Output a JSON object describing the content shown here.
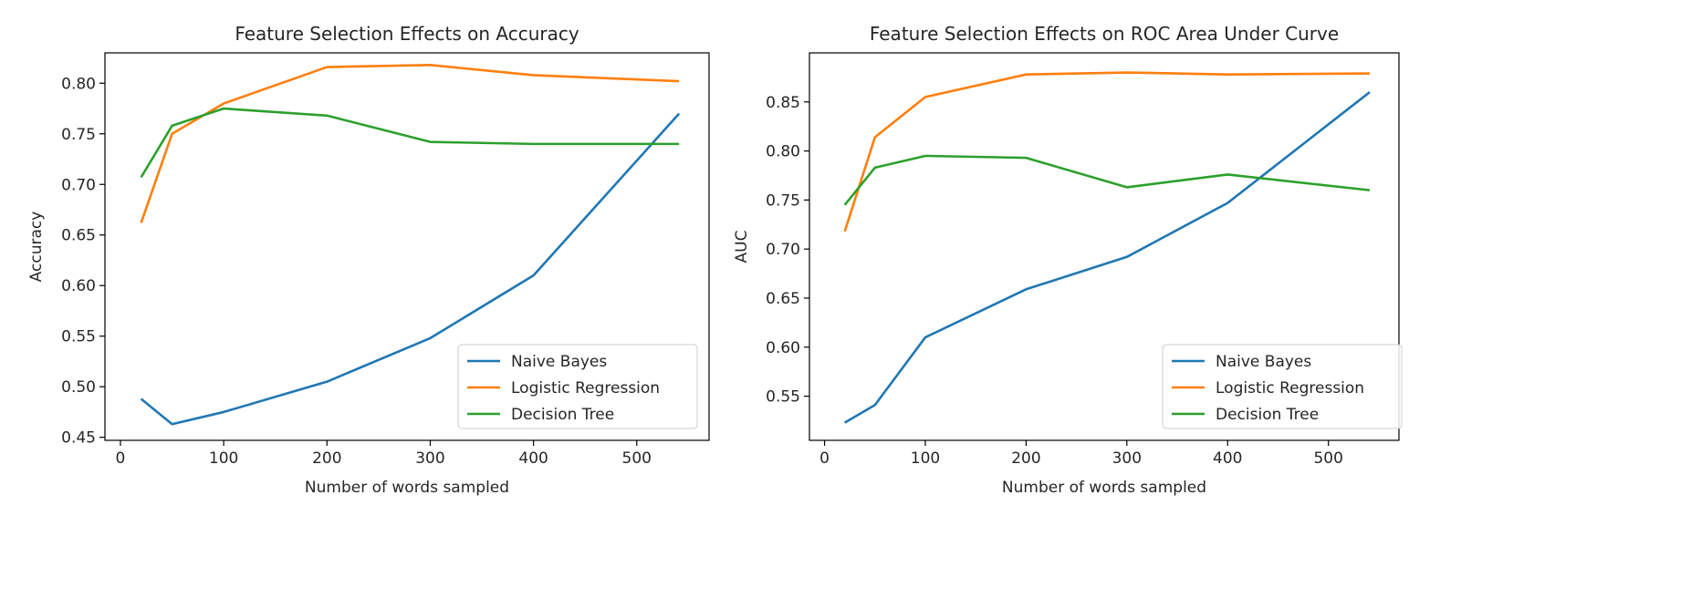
{
  "charts": {
    "colors": {
      "naive_bayes": "#1f77b4",
      "logistic_regression": "#ff7f0e",
      "decision_tree": "#2ca02c",
      "axis": "#000000",
      "text": "#262626"
    }
  },
  "chart_data": [
    {
      "type": "line",
      "title": "Feature Selection Effects on Accuracy",
      "xlabel": "Number of words sampled",
      "ylabel": "Accuracy",
      "x": [
        20,
        50,
        100,
        200,
        300,
        400,
        541
      ],
      "xlim": [
        -15,
        570
      ],
      "ylim": [
        0.447,
        0.83
      ],
      "xticks": [
        0,
        100,
        200,
        300,
        400,
        500
      ],
      "yticks": [
        0.45,
        0.5,
        0.55,
        0.6,
        0.65,
        0.7,
        0.75,
        0.8
      ],
      "ytick_labels": [
        "0.45",
        "0.50",
        "0.55",
        "0.60",
        "0.65",
        "0.70",
        "0.75",
        "0.80"
      ],
      "legend_position": "lower-right",
      "grid": false,
      "series": [
        {
          "name": "Naive Bayes",
          "color": "#1f77b4",
          "values": [
            0.488,
            0.463,
            0.475,
            0.505,
            0.548,
            0.61,
            0.77
          ]
        },
        {
          "name": "Logistic Regression",
          "color": "#ff7f0e",
          "values": [
            0.662,
            0.75,
            0.78,
            0.816,
            0.818,
            0.808,
            0.802
          ]
        },
        {
          "name": "Decision Tree",
          "color": "#2ca02c",
          "values": [
            0.707,
            0.758,
            0.775,
            0.768,
            0.742,
            0.74,
            0.74
          ]
        }
      ]
    },
    {
      "type": "line",
      "title": "Feature Selection Effects on ROC Area Under Curve",
      "xlabel": "Number of words sampled",
      "ylabel": "AUC",
      "x": [
        20,
        50,
        100,
        200,
        300,
        400,
        541
      ],
      "xlim": [
        -15,
        570
      ],
      "ylim": [
        0.505,
        0.9
      ],
      "xticks": [
        0,
        100,
        200,
        300,
        400,
        500
      ],
      "yticks": [
        0.55,
        0.6,
        0.65,
        0.7,
        0.75,
        0.8,
        0.85
      ],
      "ytick_labels": [
        "0.55",
        "0.60",
        "0.65",
        "0.70",
        "0.75",
        "0.80",
        "0.85"
      ],
      "legend_position": "lower-right",
      "grid": false,
      "series": [
        {
          "name": "Naive Bayes",
          "color": "#1f77b4",
          "values": [
            0.523,
            0.541,
            0.61,
            0.659,
            0.692,
            0.747,
            0.86
          ]
        },
        {
          "name": "Logistic Regression",
          "color": "#ff7f0e",
          "values": [
            0.718,
            0.814,
            0.855,
            0.878,
            0.88,
            0.878,
            0.879
          ]
        },
        {
          "name": "Decision Tree",
          "color": "#2ca02c",
          "values": [
            0.745,
            0.783,
            0.795,
            0.793,
            0.763,
            0.776,
            0.76
          ]
        }
      ]
    }
  ]
}
